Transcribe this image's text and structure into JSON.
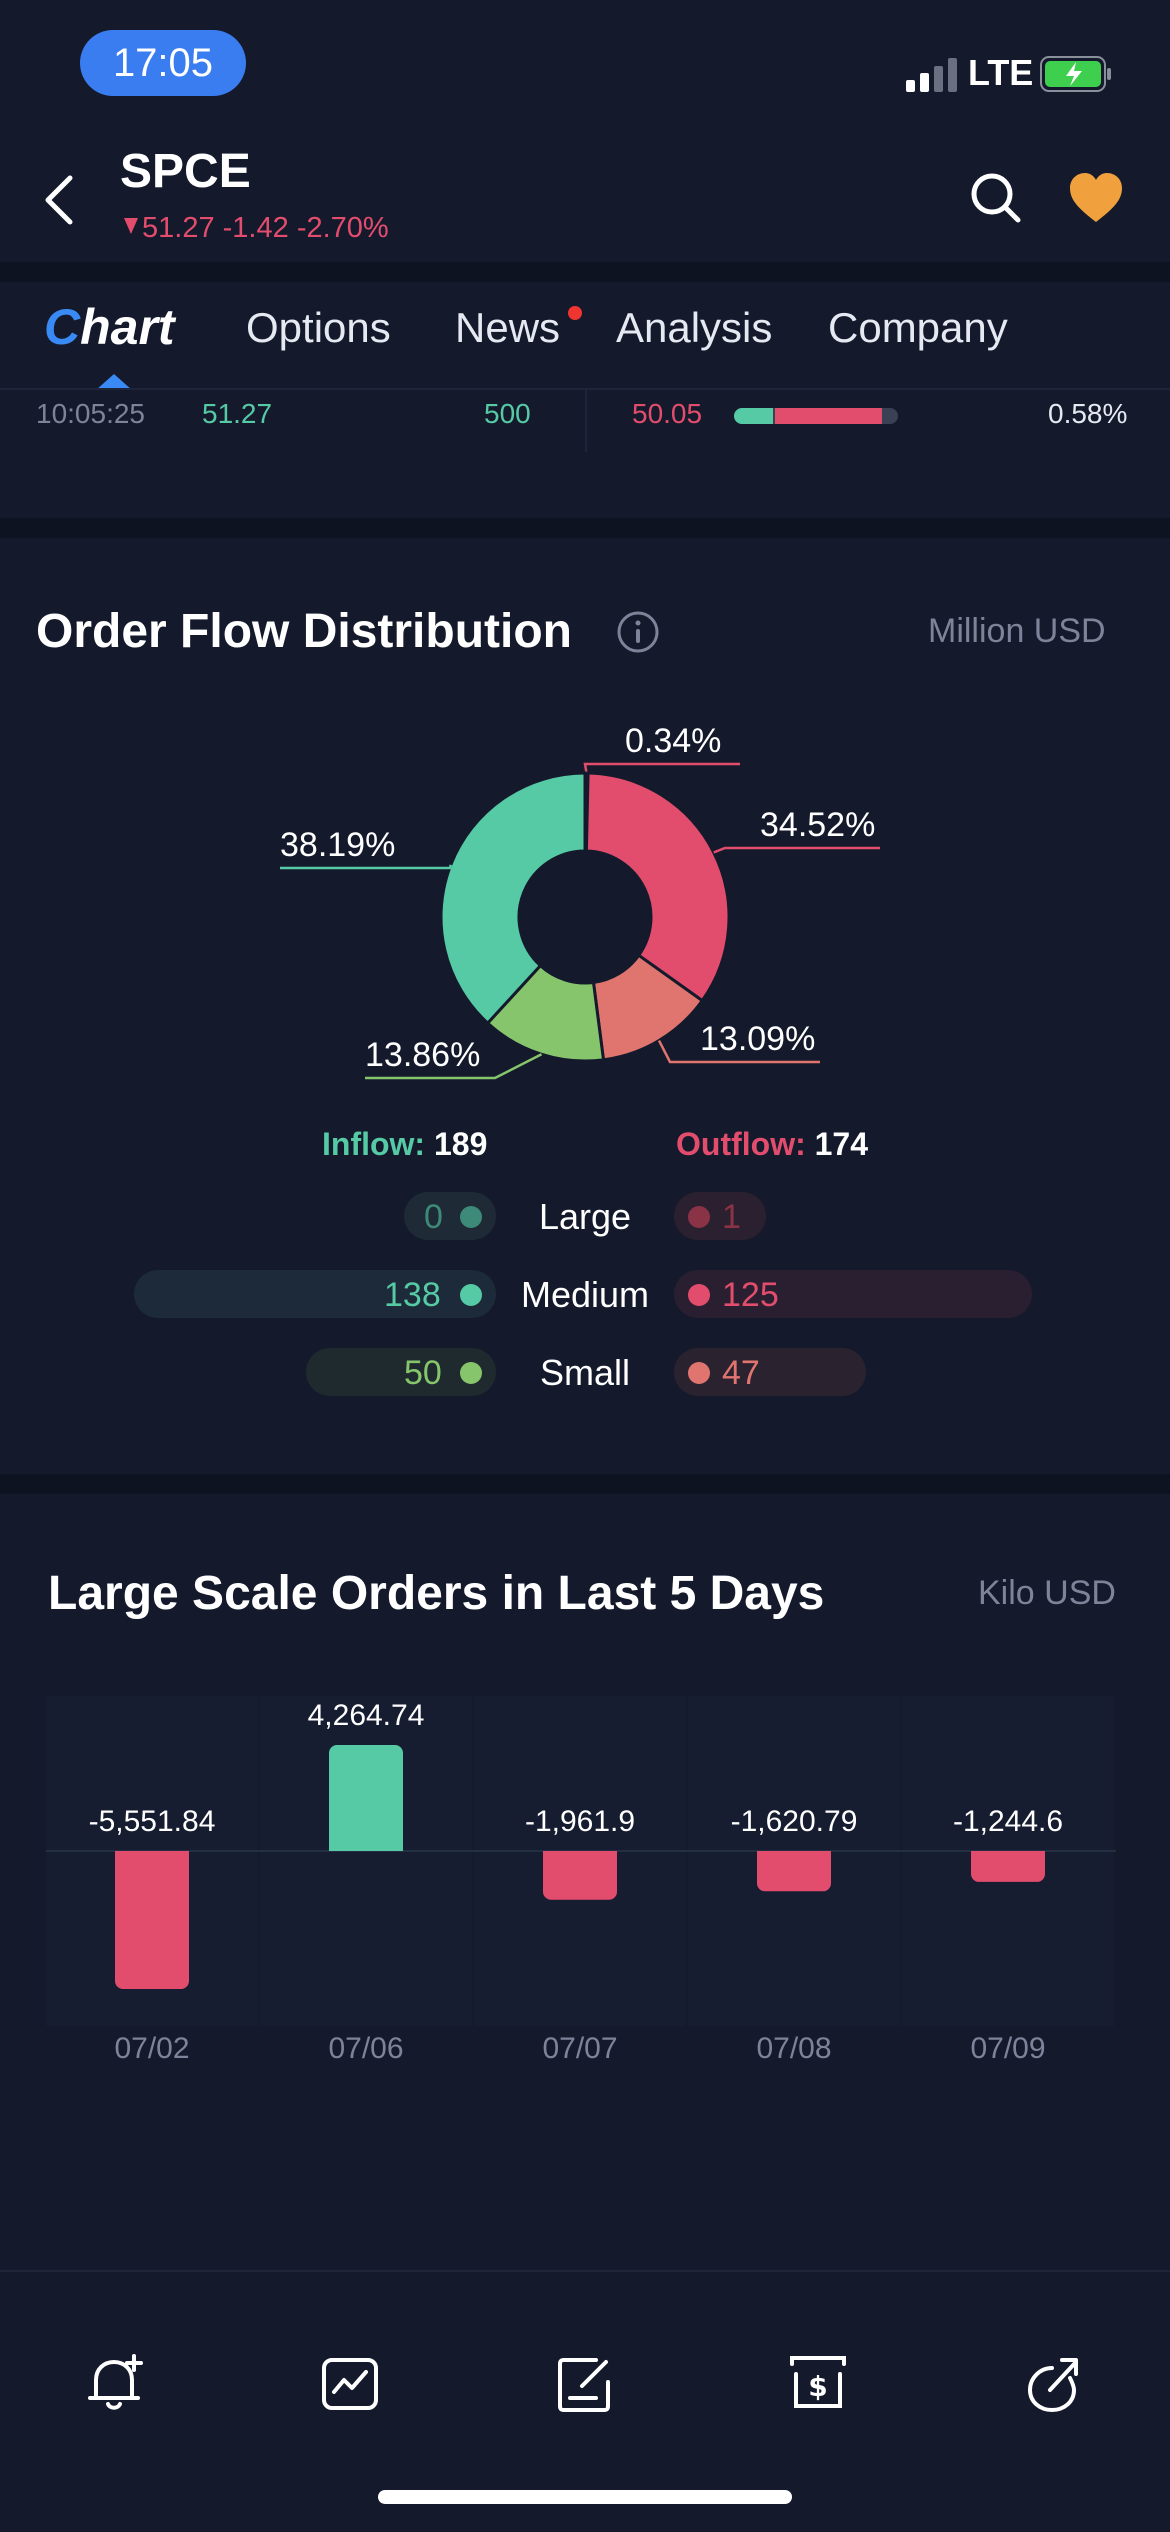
{
  "status": {
    "time": "17:05",
    "network": "LTE"
  },
  "header": {
    "symbol": "SPCE",
    "price": "51.27",
    "change": "-1.42",
    "change_pct": "-2.70%"
  },
  "tabs": [
    {
      "label_first": "C",
      "label_rest": "hart"
    },
    {
      "label": "Options"
    },
    {
      "label": "News"
    },
    {
      "label": "Analysis"
    },
    {
      "label": "Company"
    }
  ],
  "trade": {
    "time": "10:05:25",
    "price": "51.27",
    "volume": "500",
    "price2": "50.05",
    "pct": "0.58%",
    "buy_fraction": 0.25,
    "sell_fraction": 0.65
  },
  "order_flow": {
    "title": "Order Flow Distribution",
    "unit": "Million USD",
    "inflow_label": "Inflow:",
    "inflow_value": "189",
    "outflow_label": "Outflow:",
    "outflow_value": "174",
    "rows": [
      {
        "label": "Large",
        "in": "0",
        "out": "1"
      },
      {
        "label": "Medium",
        "in": "138",
        "out": "125"
      },
      {
        "label": "Small",
        "in": "50",
        "out": "47"
      }
    ]
  },
  "chart_data": [
    {
      "type": "pie",
      "labels": [
        "0.34%",
        "34.52%",
        "13.09%",
        "13.86%",
        "38.19%"
      ],
      "values": [
        0.34,
        34.52,
        13.09,
        13.86,
        38.19
      ],
      "colors": [
        "#e34d6d",
        "#e34d6d",
        "#e0756f",
        "#86c56c",
        "#56c9a5"
      ]
    },
    {
      "type": "bar",
      "title": "Large Scale Orders in Last 5 Days",
      "categories": [
        "07/02",
        "07/06",
        "07/07",
        "07/08",
        "07/09"
      ],
      "values": [
        -5551.84,
        4264.74,
        -1961.9,
        -1620.79,
        -1244.6
      ],
      "value_labels": [
        "-5,551.84",
        "4,264.74",
        "-1,961.9",
        "-1,620.79",
        "-1,244.6"
      ],
      "positive_color": "#56c9a5",
      "negative_color": "#e34d6d"
    }
  ],
  "large_scale": {
    "title": "Large Scale Orders in Last 5 Days",
    "unit": "Kilo USD"
  },
  "bottom_icons": [
    "alert-add-icon",
    "chart-trend-icon",
    "note-edit-icon",
    "trade-dollar-icon",
    "share-icon"
  ]
}
